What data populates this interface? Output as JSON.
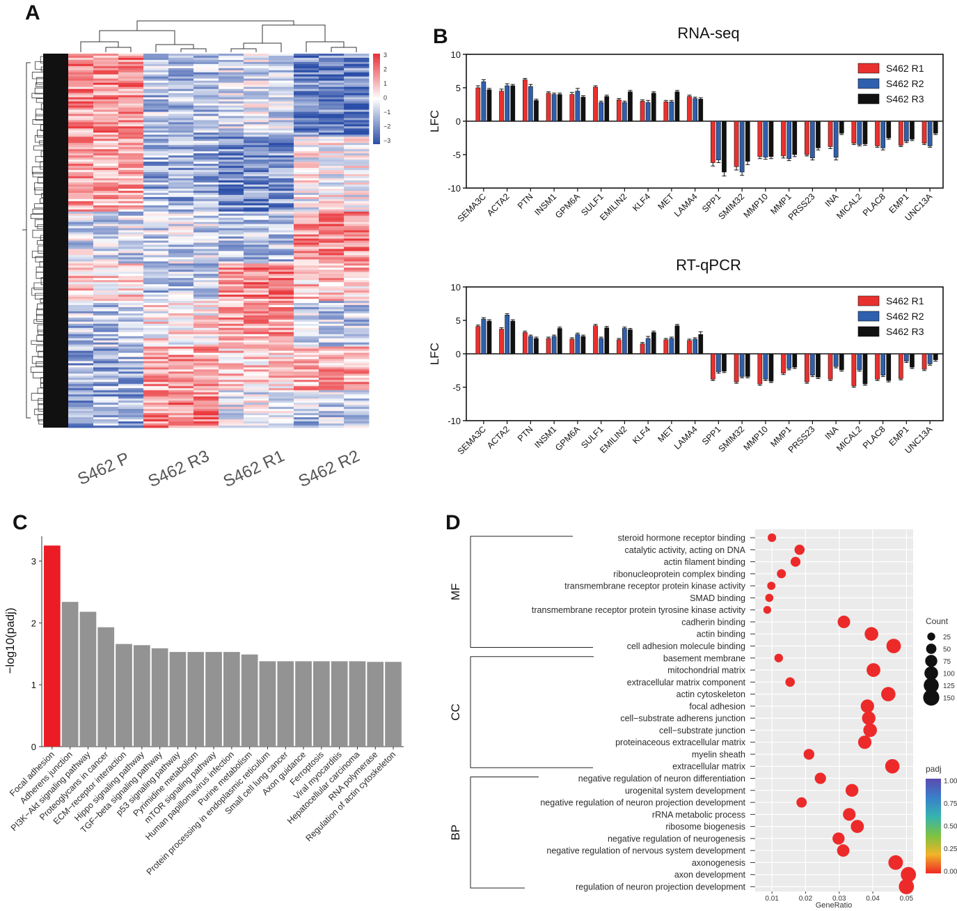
{
  "figure": {
    "panel_labels": [
      "A",
      "B",
      "C",
      "D"
    ]
  },
  "colors": {
    "r1": "#e8312f",
    "r2": "#2f5fae",
    "r3": "#111111",
    "grey_bar": "#939393",
    "red_bar": "#ec1c24",
    "dot": "#ec2a2a",
    "heat_high": "#e8343a",
    "heat_low": "#2b4ea8"
  },
  "chart_data": [
    {
      "panel": "A",
      "type": "heatmap",
      "columns": [
        "S462 P",
        "S462 R3",
        "S462 R1",
        "S462 R2"
      ],
      "colorbar": {
        "min": -3,
        "max": 3,
        "ticks": [
          "3",
          "2",
          "1",
          "0",
          "−1",
          "−2",
          "−3"
        ]
      },
      "note": "hierarchically clustered gene expression heatmap with row and column dendrograms"
    },
    {
      "panel": "B1",
      "type": "bar",
      "title": "RNA-seq",
      "ylabel": "LFC",
      "ylim": [
        -10,
        10
      ],
      "yticks": [
        "10",
        "5",
        "0",
        "-5",
        "-10"
      ],
      "categories": [
        "SEMA3C",
        "ACTA2",
        "PTN",
        "INSM1",
        "GPM6A",
        "SULF1",
        "EMILIN2",
        "KLF4",
        "MET",
        "LAMA4",
        "SPP1",
        "SMIM32",
        "MMP10",
        "MMP1",
        "PRSS23",
        "INA",
        "MICAL2",
        "PLAC8",
        "EMP1",
        "UNC13A"
      ],
      "series": [
        {
          "name": "S462 R1",
          "values": [
            5.0,
            4.5,
            6.2,
            4.2,
            4.0,
            5.1,
            3.2,
            3.0,
            2.9,
            3.7,
            -6.2,
            -6.8,
            -5.3,
            -5.2,
            -5.0,
            -3.8,
            -3.3,
            -3.7,
            -3.6,
            -3.3
          ]
        },
        {
          "name": "S462 R2",
          "values": [
            5.9,
            5.3,
            5.2,
            4.0,
            4.5,
            2.8,
            2.8,
            2.8,
            2.9,
            3.4,
            -5.8,
            -7.6,
            -5.4,
            -5.6,
            -5.5,
            -5.4,
            -3.5,
            -4.0,
            -3.0,
            -3.7
          ]
        },
        {
          "name": "S462 R3",
          "values": [
            4.7,
            5.3,
            3.1,
            4.0,
            3.6,
            3.7,
            4.4,
            4.2,
            4.4,
            3.3,
            -7.6,
            -6.0,
            -5.3,
            -5.0,
            -4.0,
            -1.8,
            -3.4,
            -2.5,
            -2.7,
            -1.8
          ]
        }
      ],
      "errors": [
        [
          0.3,
          0.3,
          0.2,
          0.2,
          0.3,
          0.2,
          0.2,
          0.2,
          0.2,
          0.2,
          0.5,
          0.5,
          0.3,
          0.3,
          0.2,
          0.3,
          0.2,
          0.2,
          0.2,
          0.2
        ],
        [
          0.3,
          0.3,
          0.3,
          0.2,
          0.4,
          0.2,
          0.2,
          0.3,
          0.2,
          0.2,
          0.4,
          0.5,
          0.3,
          0.3,
          0.3,
          0.4,
          0.2,
          0.3,
          0.2,
          0.2
        ],
        [
          0.2,
          0.2,
          0.2,
          0.2,
          0.2,
          0.2,
          0.2,
          0.2,
          0.2,
          0.2,
          0.6,
          0.5,
          0.3,
          0.3,
          0.3,
          0.2,
          0.2,
          0.2,
          0.2,
          0.2
        ]
      ],
      "legend": [
        "S462 R1",
        "S462 R2",
        "S462 R3"
      ],
      "legend_position": "top-right"
    },
    {
      "panel": "B2",
      "type": "bar",
      "title": "RT-qPCR",
      "ylabel": "LFC",
      "ylim": [
        -10,
        10
      ],
      "yticks": [
        "10",
        "5",
        "0",
        "-5",
        "-10"
      ],
      "categories": [
        "SEMA3C",
        "ACTA2",
        "PTN",
        "INSM1",
        "GPM6A",
        "SULF1",
        "EMILIN2",
        "KLF4",
        "MET",
        "LAMA4",
        "SPP1",
        "SMIM32",
        "MMP10",
        "MMP1",
        "PRSS23",
        "INA",
        "MICAL2",
        "PLAC8",
        "EMP1",
        "UNC13A"
      ],
      "series": [
        {
          "name": "S462 R1",
          "values": [
            4.1,
            3.7,
            3.2,
            2.3,
            2.2,
            4.2,
            2.1,
            1.5,
            2.1,
            2.0,
            -3.8,
            -4.2,
            -4.5,
            -2.9,
            -4.2,
            -3.8,
            -4.8,
            -3.8,
            -3.7,
            -2.3
          ]
        },
        {
          "name": "S462 R2",
          "values": [
            5.2,
            5.8,
            2.6,
            2.6,
            2.9,
            2.3,
            3.8,
            2.3,
            2.3,
            2.2,
            -2.7,
            -3.4,
            -3.8,
            -2.2,
            -3.2,
            -1.9,
            -2.4,
            -3.2,
            -1.1,
            -1.5
          ]
        },
        {
          "name": "S462 R3",
          "values": [
            4.9,
            4.9,
            2.3,
            3.8,
            2.6,
            3.9,
            3.6,
            3.2,
            4.2,
            2.9,
            -2.6,
            -3.4,
            -4.1,
            -2.0,
            -3.5,
            -2.4,
            -4.5,
            -4.0,
            -2.0,
            -0.9
          ]
        }
      ],
      "errors": [
        [
          0.2,
          0.2,
          0.2,
          0.2,
          0.2,
          0.2,
          0.2,
          0.2,
          0.2,
          0.2,
          0.2,
          0.2,
          0.2,
          0.2,
          0.2,
          0.2,
          0.2,
          0.2,
          0.2,
          0.2
        ],
        [
          0.2,
          0.2,
          0.2,
          0.2,
          0.2,
          0.2,
          0.2,
          0.3,
          0.2,
          0.2,
          0.2,
          0.2,
          0.2,
          0.2,
          0.2,
          0.2,
          0.2,
          0.2,
          0.2,
          0.2
        ],
        [
          0.2,
          0.2,
          0.2,
          0.2,
          0.2,
          0.2,
          0.2,
          0.2,
          0.2,
          0.4,
          0.2,
          0.2,
          0.2,
          0.2,
          0.2,
          0.2,
          0.2,
          0.2,
          0.2,
          0.2
        ]
      ],
      "legend": [
        "S462 R1",
        "S462 R2",
        "S462 R3"
      ],
      "legend_position": "top-right"
    },
    {
      "panel": "C",
      "type": "bar",
      "ylabel": "−log10(padj)",
      "ylim": [
        0,
        3.4
      ],
      "yticks": [
        "0",
        "1",
        "2",
        "3"
      ],
      "categories": [
        "Focal adhesion",
        "Adherens junction",
        "PI3K−Akt signaling pathway",
        "Proteoglycans in cancer",
        "ECM−receptor interaction",
        "Hippo signaling pathway",
        "TGF−beta signaling pathway",
        "p53 signaling pathway",
        "Pyrimidine metabolism",
        "mTOR signaling pathway",
        "Human papillomavirus infection",
        "Purine metabolism",
        "Protein processing in endoplasmic reticulum",
        "Small cell lung cancer",
        "Axon guidance",
        "Ferroptosis",
        "Viral myocarditis",
        "Hepatocellular carcinoma",
        "RNA polymerase",
        "Regulation of actin cytoskeleton"
      ],
      "values": [
        3.25,
        2.34,
        2.18,
        1.93,
        1.66,
        1.64,
        1.59,
        1.53,
        1.53,
        1.53,
        1.53,
        1.49,
        1.38,
        1.38,
        1.38,
        1.38,
        1.38,
        1.38,
        1.37,
        1.37
      ],
      "highlight_index": 0
    },
    {
      "panel": "D",
      "type": "scatter",
      "xlabel": "GeneRatio",
      "xlim": [
        0.005,
        0.052
      ],
      "xticks": [
        "0.01",
        "0.02",
        "0.03",
        "0.04",
        "0.05"
      ],
      "xtick_values": [
        0.01,
        0.02,
        0.03,
        0.04,
        0.05
      ],
      "groups": [
        {
          "name": "MF",
          "start": 0,
          "end": 9
        },
        {
          "name": "CC",
          "start": 10,
          "end": 19
        },
        {
          "name": "BP",
          "start": 20,
          "end": 29
        }
      ],
      "terms": [
        "steroid hormone receptor binding",
        "catalytic activity, acting on DNA",
        "actin filament binding",
        "ribonucleoprotein complex binding",
        "transmembrane receptor protein kinase activity",
        "SMAD binding",
        "transmembrane receptor protein tyrosine kinase activity",
        "cadherin binding",
        "actin binding",
        "cell adhesion molecule binding",
        "basement membrane",
        "mitochondrial matrix",
        "extracellular matrix component",
        "actin cytoskeleton",
        "focal adhesion",
        "cell−substrate adherens junction",
        "cell−substrate junction",
        "proteinaceous extracellular matrix",
        "myelin sheath",
        "extracellular matrix",
        "negative regulation of neuron differentiation",
        "urogenital system development",
        "negative regulation of neuron projection development",
        "rRNA metabolic process",
        "ribosome biogenesis",
        "negative regulation of neurogenesis",
        "negative regulation of nervous system development",
        "axonogenesis",
        "axon development",
        "regulation of neuron projection development"
      ],
      "gene_ratio": [
        0.01,
        0.0182,
        0.017,
        0.0128,
        0.0098,
        0.0092,
        0.0086,
        0.0314,
        0.0396,
        0.0462,
        0.012,
        0.0402,
        0.0154,
        0.0446,
        0.0384,
        0.0388,
        0.0392,
        0.0376,
        0.021,
        0.0458,
        0.0244,
        0.0338,
        0.0188,
        0.033,
        0.0354,
        0.0298,
        0.0312,
        0.0468,
        0.0506,
        0.05
      ],
      "count": [
        30,
        48,
        45,
        35,
        28,
        26,
        24,
        82,
        100,
        115,
        32,
        102,
        40,
        112,
        96,
        98,
        99,
        95,
        55,
        112,
        62,
        86,
        50,
        84,
        90,
        76,
        80,
        118,
        130,
        128
      ],
      "legend": {
        "size_title": "Count",
        "size_values": [
          25,
          50,
          75,
          100,
          125,
          150
        ],
        "size_labels": [
          "25",
          "50",
          "75",
          "100",
          "125",
          "150"
        ],
        "color_title": "padj",
        "color_ticks": [
          "1.00",
          "0.75",
          "0.50",
          "0.25",
          "0.00"
        ]
      }
    }
  ]
}
